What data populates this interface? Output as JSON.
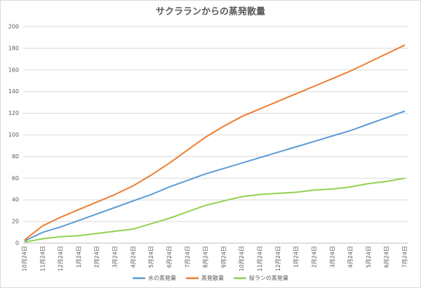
{
  "chart_data": {
    "type": "line",
    "title": "サクラランからの蒸発散量",
    "categories": [
      "10月24日",
      "11月24日",
      "12月24日",
      "1月24日",
      "2月24日",
      "3月24日",
      "4月24日",
      "5月24日",
      "6月24日",
      "7月24日",
      "8月24日",
      "9月24日",
      "10月24日",
      "11月24日",
      "12月24日",
      "1月24日",
      "2月24日",
      "3月24日",
      "4月24日",
      "5月24日",
      "6月24日",
      "7月24日"
    ],
    "series": [
      {
        "name": "水の蒸発量",
        "color": "#5b9bd5",
        "values": [
          2,
          10,
          15,
          21,
          27,
          33,
          39,
          45,
          52,
          58,
          64,
          69,
          74,
          79,
          84,
          89,
          94,
          99,
          104,
          110,
          116,
          122
        ]
      },
      {
        "name": "蒸発散量",
        "color": "#ed7d31",
        "values": [
          3,
          16,
          24,
          31,
          38,
          45,
          53,
          63,
          74,
          86,
          98,
          108,
          117,
          124,
          131,
          138,
          145,
          152,
          159,
          167,
          175,
          183
        ]
      },
      {
        "name": "桜ランの蒸発量",
        "color": "#92d050",
        "values": [
          1,
          4,
          6,
          7,
          9,
          11,
          13,
          18,
          23,
          29,
          35,
          39,
          43,
          45,
          46,
          47,
          49,
          50,
          52,
          55,
          57,
          60
        ]
      }
    ],
    "ylim": [
      0,
      200
    ],
    "yticks": [
      0,
      20,
      40,
      60,
      80,
      100,
      120,
      140,
      160,
      180,
      200
    ],
    "grid": true,
    "legend": "bottom"
  }
}
